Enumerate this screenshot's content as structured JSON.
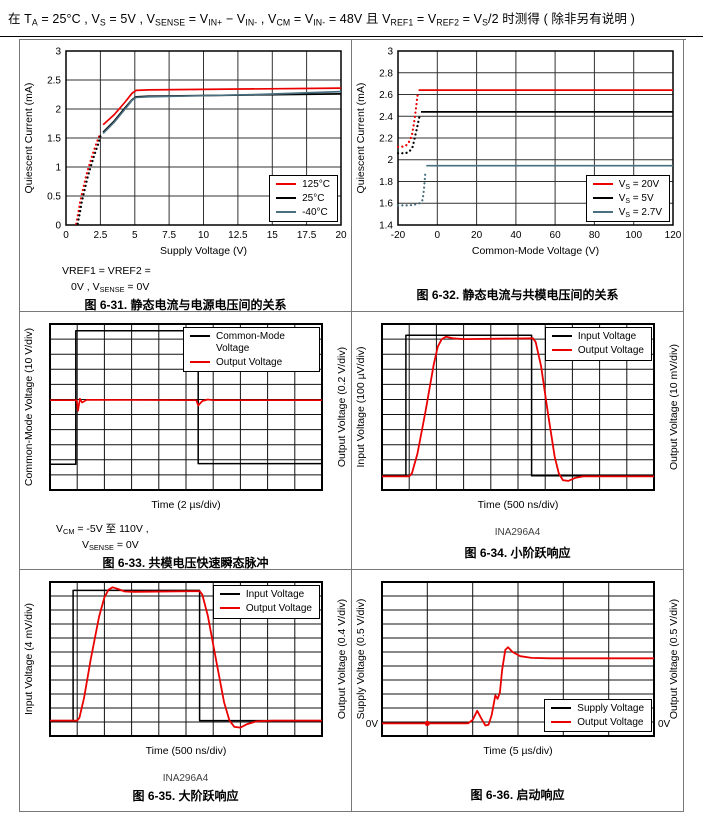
{
  "page": {
    "header": "在 T{A} = 25°C , V{S} = 5V , V{SENSE} = V{IN+} − V{IN-} , V{CM} = V{IN-} = 48V 且 V{REF1} = V{REF2} = V{S}/2 时测得 ( 除非另有说明 )"
  },
  "colors": {
    "red": "#eb0000",
    "black": "#000000",
    "teal": "#4a6f7f"
  },
  "chart_data": [
    {
      "id": "fig-6-31",
      "type": "line",
      "caption": "图 6-31. 静态电流与电源电压间的关系",
      "xlabel": "Supply Voltage (V)",
      "ylabel": "Quiescent Current (mA)",
      "xlim": [
        0,
        20
      ],
      "ylim": [
        0,
        3
      ],
      "xticks": [
        0,
        2.5,
        5,
        7.5,
        10,
        12.5,
        15,
        17.5,
        20
      ],
      "yticks": [
        0,
        0.5,
        1,
        1.5,
        2,
        2.5,
        3
      ],
      "grid": true,
      "legend": {
        "pos": "br",
        "items": [
          {
            "label": "125°C",
            "color": "#eb0000"
          },
          {
            "label": "25°C",
            "color": "#000000"
          },
          {
            "label": "-40°C",
            "color": "#4a6f7f"
          }
        ]
      },
      "series": [
        {
          "name": "startup-dotted-hot",
          "color": "#eb0000",
          "style": "dotted",
          "points": [
            [
              0.75,
              0.02
            ],
            [
              0.9,
              0.22
            ],
            [
              1.05,
              0.42
            ],
            [
              1.25,
              0.63
            ],
            [
              1.45,
              0.83
            ],
            [
              1.65,
              1.0
            ],
            [
              1.85,
              1.15
            ],
            [
              2.05,
              1.3
            ],
            [
              2.25,
              1.43
            ],
            [
              2.45,
              1.55
            ]
          ]
        },
        {
          "name": "startup-dotted-cold",
          "color": "#000000",
          "style": "dotted",
          "points": [
            [
              0.85,
              0.02
            ],
            [
              1.0,
              0.2
            ],
            [
              1.15,
              0.4
            ],
            [
              1.35,
              0.6
            ],
            [
              1.55,
              0.8
            ],
            [
              1.75,
              0.97
            ],
            [
              1.95,
              1.12
            ],
            [
              2.15,
              1.27
            ],
            [
              2.35,
              1.4
            ],
            [
              2.55,
              1.57
            ]
          ]
        },
        {
          "name": "125C",
          "color": "#eb0000",
          "style": "solid",
          "points": [
            [
              2.7,
              1.73
            ],
            [
              3.5,
              1.9
            ],
            [
              4.3,
              2.12
            ],
            [
              4.8,
              2.27
            ],
            [
              5.1,
              2.32
            ],
            [
              6,
              2.33
            ],
            [
              20,
              2.36
            ]
          ]
        },
        {
          "name": "25C",
          "color": "#000000",
          "style": "solid",
          "points": [
            [
              2.7,
              1.6
            ],
            [
              3.5,
              1.79
            ],
            [
              4.3,
              2.02
            ],
            [
              4.8,
              2.16
            ],
            [
              5.1,
              2.21
            ],
            [
              6,
              2.22
            ],
            [
              20,
              2.26
            ]
          ]
        },
        {
          "name": "-40C",
          "color": "#4a6f7f",
          "style": "solid",
          "points": [
            [
              2.7,
              1.58
            ],
            [
              3.5,
              1.77
            ],
            [
              4.3,
              2.0
            ],
            [
              4.8,
              2.15
            ],
            [
              5.1,
              2.2
            ],
            [
              6,
              2.21
            ],
            [
              14,
              2.25
            ],
            [
              20,
              2.3
            ]
          ]
        }
      ],
      "notes": [
        "VREF1 = VREF2 =",
        "0V , V{SENSE} = 0V"
      ]
    },
    {
      "id": "fig-6-32",
      "type": "line",
      "caption": "图 6-32. 静态电流与共模电压间的关系",
      "xlabel": "Common-Mode Voltage (V)",
      "ylabel": "Quiescent Current (mA)",
      "xlim": [
        -20,
        120
      ],
      "ylim": [
        1.4,
        3
      ],
      "xticks": [
        -20,
        0,
        20,
        40,
        60,
        80,
        100,
        120
      ],
      "yticks": [
        1.4,
        1.6,
        1.8,
        2,
        2.2,
        2.4,
        2.6,
        2.8,
        3
      ],
      "grid": true,
      "legend": {
        "pos": "br",
        "items": [
          {
            "label": "V{S} = 20V",
            "color": "#eb0000"
          },
          {
            "label": "V{S} = 5V",
            "color": "#000000"
          },
          {
            "label": "V{S} = 2.7V",
            "color": "#4a6f7f"
          }
        ]
      },
      "series": [
        {
          "name": "20V-dotted",
          "color": "#eb0000",
          "style": "dotted",
          "points": [
            [
              -20,
              2.12
            ],
            [
              -18,
              2.12
            ],
            [
              -16,
              2.13
            ],
            [
              -14.5,
              2.16
            ],
            [
              -13,
              2.22
            ],
            [
              -12,
              2.32
            ],
            [
              -11,
              2.45
            ],
            [
              -10.3,
              2.56
            ],
            [
              -9.8,
              2.62
            ]
          ]
        },
        {
          "name": "20V",
          "color": "#eb0000",
          "style": "solid",
          "points": [
            [
              -9.5,
              2.64
            ],
            [
              120,
              2.64
            ]
          ]
        },
        {
          "name": "5V-dotted",
          "color": "#000000",
          "style": "dotted",
          "points": [
            [
              -20,
              2.06
            ],
            [
              -18,
              2.06
            ],
            [
              -16,
              2.06
            ],
            [
              -14,
              2.08
            ],
            [
              -12.5,
              2.12
            ],
            [
              -11.5,
              2.2
            ],
            [
              -10.5,
              2.28
            ],
            [
              -9.5,
              2.36
            ],
            [
              -8.8,
              2.42
            ]
          ]
        },
        {
          "name": "5V",
          "color": "#000000",
          "style": "solid",
          "points": [
            [
              -8.3,
              2.44
            ],
            [
              120,
              2.44
            ]
          ]
        },
        {
          "name": "2.7V-dotted",
          "color": "#4a6f7f",
          "style": "dotted",
          "points": [
            [
              -20,
              1.58
            ],
            [
              -17,
              1.58
            ],
            [
              -14,
              1.58
            ],
            [
              -11,
              1.59
            ],
            [
              -9,
              1.6
            ],
            [
              -7.5,
              1.63
            ],
            [
              -6.8,
              1.72
            ],
            [
              -6.3,
              1.83
            ],
            [
              -6,
              1.9
            ]
          ]
        },
        {
          "name": "2.7V",
          "color": "#4a6f7f",
          "style": "solid",
          "points": [
            [
              -5.6,
              1.945
            ],
            [
              120,
              1.945
            ]
          ]
        }
      ],
      "notes": []
    },
    {
      "id": "fig-6-33",
      "type": "scope",
      "caption": "图 6-33. 共模电压快速瞬态脉冲",
      "xlabel": "Time (2 µs/div)",
      "ylabel_left": "Common-Mode Voltage (10 V/div)",
      "ylabel_right": "Output Voltage (0.2 V/div)",
      "cols": 10,
      "rows": 11,
      "legend": {
        "pos": "tr",
        "items": [
          {
            "label": "Common-Mode Voltage",
            "color": "#000000"
          },
          {
            "label": "Output Voltage",
            "color": "#eb0000"
          }
        ]
      },
      "traces": [
        {
          "name": "common-mode-voltage",
          "color": "#000000",
          "width": 1.5,
          "points": [
            [
              0,
              9.3
            ],
            [
              0.95,
              9.3
            ],
            [
              0.95,
              0.45
            ],
            [
              5.45,
              0.45
            ],
            [
              5.45,
              9.25
            ],
            [
              10,
              9.25
            ]
          ]
        },
        {
          "name": "output-voltage",
          "color": "#eb0000",
          "width": 1.7,
          "points": [
            [
              0,
              5.05
            ],
            [
              0.98,
              5.05
            ],
            [
              1.03,
              5.75
            ],
            [
              1.1,
              4.95
            ],
            [
              1.18,
              5.2
            ],
            [
              1.35,
              5.02
            ],
            [
              5.38,
              5.05
            ],
            [
              5.45,
              5.4
            ],
            [
              5.6,
              5.1
            ],
            [
              5.8,
              5.0
            ],
            [
              6.0,
              5.05
            ],
            [
              10,
              5.05
            ]
          ]
        }
      ],
      "notes": [
        "V{CM} = -5V 至 110V ,",
        "V{SENSE} = 0V"
      ]
    },
    {
      "id": "fig-6-34",
      "type": "scope",
      "caption": "图 6-34. 小阶跃响应",
      "xlabel": "Time (500 ns/div)",
      "ylabel_left": "Input Voltage (100 µV/div)",
      "ylabel_right": "Output Voltage (10 mV/div)",
      "cols": 10,
      "rows": 11,
      "legend": {
        "pos": "tr",
        "items": [
          {
            "label": "Input Voltage",
            "color": "#000000"
          },
          {
            "label": "Output Voltage",
            "color": "#eb0000"
          }
        ]
      },
      "traces": [
        {
          "name": "input-voltage",
          "color": "#000000",
          "width": 1.5,
          "points": [
            [
              0,
              10.05
            ],
            [
              0.88,
              10.05
            ],
            [
              0.88,
              0.75
            ],
            [
              5.5,
              0.75
            ],
            [
              5.5,
              10.05
            ],
            [
              10,
              10.05
            ]
          ]
        },
        {
          "name": "output-voltage",
          "color": "#eb0000",
          "width": 1.8,
          "points": [
            [
              0,
              10.1
            ],
            [
              1.0,
              10.1
            ],
            [
              1.1,
              9.9
            ],
            [
              1.3,
              8.6
            ],
            [
              1.6,
              5.8
            ],
            [
              1.9,
              2.7
            ],
            [
              2.05,
              1.5
            ],
            [
              2.2,
              1.0
            ],
            [
              2.35,
              0.85
            ],
            [
              2.6,
              0.95
            ],
            [
              3.0,
              1.0
            ],
            [
              5.55,
              0.95
            ],
            [
              5.65,
              1.2
            ],
            [
              5.85,
              2.8
            ],
            [
              6.1,
              5.9
            ],
            [
              6.35,
              8.8
            ],
            [
              6.5,
              9.9
            ],
            [
              6.65,
              10.35
            ],
            [
              6.85,
              10.4
            ],
            [
              7.1,
              10.2
            ],
            [
              7.4,
              10.1
            ],
            [
              10,
              10.1
            ]
          ]
        }
      ],
      "notes": [
        "INA296A4"
      ]
    },
    {
      "id": "fig-6-35",
      "type": "scope",
      "caption": "图 6-35. 大阶跃响应",
      "xlabel": "Time (500 ns/div)",
      "ylabel_left": "Input Voltage (4 mV/div)",
      "ylabel_right": "Output Voltage (0.4 V/div)",
      "cols": 10,
      "rows": 11,
      "legend": {
        "pos": "tr",
        "items": [
          {
            "label": "Input Voltage",
            "color": "#000000"
          },
          {
            "label": "Output Voltage",
            "color": "#eb0000"
          }
        ]
      },
      "traces": [
        {
          "name": "input-voltage",
          "color": "#000000",
          "width": 1.5,
          "points": [
            [
              0,
              9.9
            ],
            [
              0.85,
              9.9
            ],
            [
              0.85,
              0.6
            ],
            [
              5.5,
              0.6
            ],
            [
              5.5,
              9.9
            ],
            [
              10,
              9.9
            ]
          ]
        },
        {
          "name": "output-voltage",
          "color": "#eb0000",
          "width": 1.8,
          "points": [
            [
              0,
              9.9
            ],
            [
              1.0,
              9.9
            ],
            [
              1.08,
              9.7
            ],
            [
              1.25,
              8.3
            ],
            [
              1.5,
              5.5
            ],
            [
              1.8,
              2.5
            ],
            [
              2.0,
              1.1
            ],
            [
              2.15,
              0.55
            ],
            [
              2.3,
              0.38
            ],
            [
              2.5,
              0.5
            ],
            [
              2.75,
              0.68
            ],
            [
              3.1,
              0.7
            ],
            [
              5.5,
              0.65
            ],
            [
              5.6,
              0.9
            ],
            [
              5.8,
              2.4
            ],
            [
              6.1,
              5.5
            ],
            [
              6.4,
              8.6
            ],
            [
              6.6,
              9.9
            ],
            [
              6.78,
              10.35
            ],
            [
              7.0,
              10.4
            ],
            [
              7.25,
              10.15
            ],
            [
              7.6,
              9.95
            ],
            [
              8.2,
              9.9
            ],
            [
              10,
              9.9
            ]
          ]
        }
      ],
      "notes": [
        "INA296A4"
      ]
    },
    {
      "id": "fig-6-36",
      "type": "scope",
      "caption": "图 6-36. 启动响应",
      "xlabel": "Time (5 µs/div)",
      "ylabel_left": "Supply Voltage (0.5 V/div)",
      "ylabel_right": "Output Voltage (0.5 V/div)",
      "cols": 6,
      "rows": 11,
      "zero_label": "0V",
      "zero_row": 10.1,
      "marker": {
        "x": 1.0,
        "y": 10.1,
        "color": "#eb0000"
      },
      "legend": {
        "pos": "br-scope",
        "items": [
          {
            "label": "Supply Voltage",
            "color": "#000000"
          },
          {
            "label": "Output Voltage",
            "color": "#eb0000"
          }
        ]
      },
      "traces": [
        {
          "name": "output-voltage",
          "color": "#eb0000",
          "width": 1.8,
          "points": [
            [
              0,
              10.1
            ],
            [
              1.9,
              10.1
            ],
            [
              2.0,
              9.85
            ],
            [
              2.1,
              9.2
            ],
            [
              2.2,
              9.8
            ],
            [
              2.28,
              10.25
            ],
            [
              2.35,
              10.2
            ],
            [
              2.42,
              9.5
            ],
            [
              2.5,
              8.1
            ],
            [
              2.55,
              8.35
            ],
            [
              2.6,
              7.9
            ],
            [
              2.65,
              6.3
            ],
            [
              2.72,
              4.85
            ],
            [
              2.78,
              4.66
            ],
            [
              2.88,
              5.0
            ],
            [
              3.05,
              5.3
            ],
            [
              3.3,
              5.42
            ],
            [
              3.7,
              5.45
            ],
            [
              6,
              5.45
            ]
          ]
        }
      ],
      "notes": []
    }
  ]
}
